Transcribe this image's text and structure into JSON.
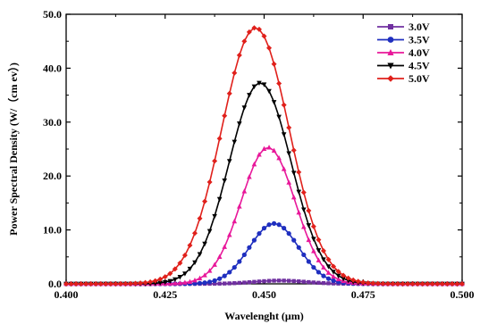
{
  "chart_data": {
    "type": "line",
    "xlabel": "Wavelenght (μm)",
    "ylabel": "Power Spectral Density (W/（cm ev）)",
    "xlim": [
      0.4,
      0.5
    ],
    "ylim": [
      0,
      50
    ],
    "x_ticks": [
      "0.400",
      "0.425",
      "0.450",
      "0.475",
      "0.500"
    ],
    "y_ticks": [
      "0.0",
      "10.0",
      "20.0",
      "30.0",
      "40.0",
      "50.0"
    ],
    "grid": false,
    "legend_position": "top-right",
    "series": [
      {
        "name": "3.0V",
        "color": "#7030a0",
        "marker": "square",
        "peak_x": 0.454,
        "peak_y": 0.6,
        "sigma": 0.0065
      },
      {
        "name": "3.5V",
        "color": "#1f2fbf",
        "marker": "circle",
        "peak_x": 0.4525,
        "peak_y": 11.2,
        "sigma": 0.0062
      },
      {
        "name": "4.0V",
        "color": "#e8189a",
        "marker": "triangle",
        "peak_x": 0.451,
        "peak_y": 25.3,
        "sigma": 0.0068
      },
      {
        "name": "4.5V",
        "color": "#000000",
        "marker": "triangle-down",
        "peak_x": 0.449,
        "peak_y": 37.3,
        "sigma": 0.0078
      },
      {
        "name": "5.0V",
        "color": "#e0201b",
        "marker": "diamond",
        "peak_x": 0.4478,
        "peak_y": 47.5,
        "sigma": 0.0085
      }
    ]
  }
}
